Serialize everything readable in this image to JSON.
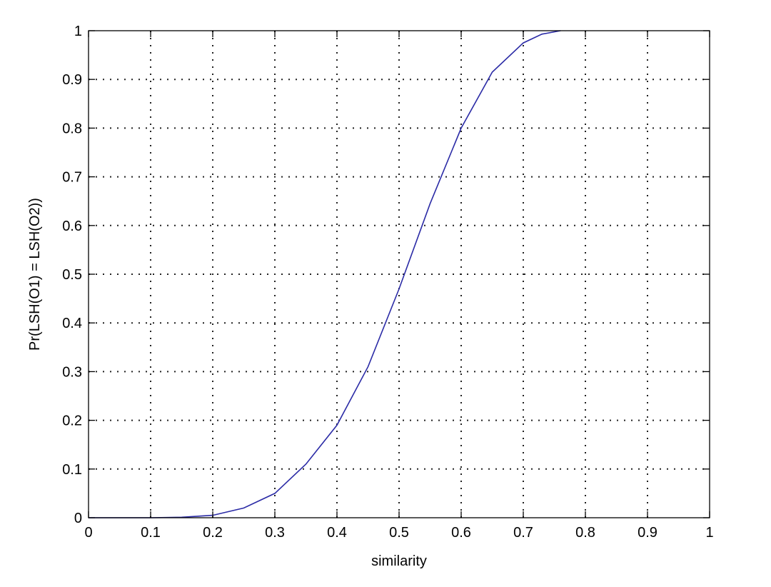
{
  "chart_data": {
    "type": "line",
    "title": "",
    "xlabel": "similarity",
    "ylabel": "Pr(LSH(O1) = LSH(O2))",
    "xlim": [
      0,
      1
    ],
    "ylim": [
      0,
      1
    ],
    "grid": true,
    "xticks": [
      "0",
      "0.1",
      "0.2",
      "0.3",
      "0.4",
      "0.5",
      "0.6",
      "0.7",
      "0.8",
      "0.9",
      "1"
    ],
    "yticks": [
      "0",
      "0.1",
      "0.2",
      "0.3",
      "0.4",
      "0.5",
      "0.6",
      "0.7",
      "0.8",
      "0.9",
      "1"
    ],
    "line_color": "#2b2ba6",
    "series": [
      {
        "x": [
          0,
          0.05,
          0.1,
          0.15,
          0.2,
          0.25,
          0.3,
          0.35,
          0.4,
          0.45,
          0.5,
          0.55,
          0.6,
          0.65,
          0.7,
          0.73,
          0.76
        ],
        "y": [
          0,
          0,
          0,
          0.001,
          0.005,
          0.02,
          0.05,
          0.11,
          0.19,
          0.31,
          0.47,
          0.645,
          0.8,
          0.915,
          0.975,
          0.993,
          1.0
        ]
      }
    ]
  }
}
